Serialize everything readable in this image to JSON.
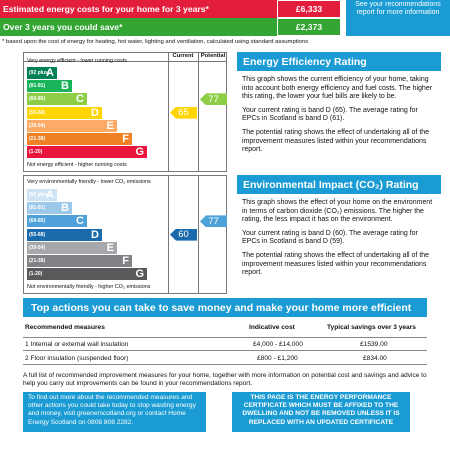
{
  "costs": {
    "row1_label": "Estimated energy costs for your home for 3 years*",
    "row1_value": "£6,333",
    "row2_label": "Over 3 years you could save*",
    "row2_value": "£2,373",
    "see_box": "See your recommendations report for more information",
    "footnote": "* based upon the cost of energy for heating, hot water, lighting and ventilation, calculated using standard assumptions"
  },
  "efficiency_chart": {
    "col_current": "Current",
    "col_potential": "Potential",
    "top_caption": "Very energy efficient - lower running costs",
    "bottom_caption": "Not energy efficient - higher running costs",
    "bands": [
      {
        "range": "(92 plus)",
        "letter": "A",
        "color": "#008054"
      },
      {
        "range": "(81-91)",
        "letter": "B",
        "color": "#19b459"
      },
      {
        "range": "(69-80)",
        "letter": "C",
        "color": "#8dce46"
      },
      {
        "range": "(55-68)",
        "letter": "D",
        "color": "#ffd500"
      },
      {
        "range": "(39-54)",
        "letter": "E",
        "color": "#fcaa65"
      },
      {
        "range": "(21-38)",
        "letter": "F",
        "color": "#ef8023"
      },
      {
        "range": "(1-20)",
        "letter": "G",
        "color": "#e9153b"
      }
    ],
    "current": 65,
    "current_color": "#ffd500",
    "potential": 77,
    "potential_color": "#8dce46"
  },
  "impact_chart": {
    "top_caption": "Very environmentally friendly - lower CO₂ emissions",
    "bottom_caption": "Not environmentally friendly - higher CO₂ emissions",
    "bands": [
      {
        "range": "(92 plus)",
        "letter": "A",
        "color": "#cfe3f5"
      },
      {
        "range": "(81-91)",
        "letter": "B",
        "color": "#9dc8ea"
      },
      {
        "range": "(69-80)",
        "letter": "C",
        "color": "#4fa1d9"
      },
      {
        "range": "(55-68)",
        "letter": "D",
        "color": "#1a6aac"
      },
      {
        "range": "(39-54)",
        "letter": "E",
        "color": "#a6a8ab"
      },
      {
        "range": "(21-38)",
        "letter": "F",
        "color": "#808285"
      },
      {
        "range": "(1-20)",
        "letter": "G",
        "color": "#58595b"
      }
    ],
    "current": 60,
    "current_color": "#1a6aac",
    "potential": 77,
    "potential_color": "#4fa1d9"
  },
  "efficiency_panel": {
    "title": "Energy Efficiency Rating",
    "p1": "This graph shows the current efficiency of your home, taking into account both energy efficiency and fuel costs. The higher this rating, the lower your fuel bills are likely to be.",
    "p2": "Your current rating is band D (65). The average rating for EPCs in Scotland is band D (61).",
    "p3": "The potential rating shows the effect of undertaking all of the improvement measures listed within your recommendations report."
  },
  "impact_panel": {
    "title": "Environmental Impact (CO₂) Rating",
    "p1": "This graph shows the effect of your home on the environment in terms of carbon dioxide (CO₂) emissions. The higher the rating, the less impact it has on the environment.",
    "p2": "Your current rating is band D (60). The average rating for EPCs in Scotland is band D (59).",
    "p3": "The potential rating shows the effect of undertaking all of the improvement measures listed within your recommendations report."
  },
  "actions": {
    "title": "Top actions you can take to save money and make your home more efficient",
    "headers": [
      "Recommended measures",
      "Indicative cost",
      "Typical savings over 3 years"
    ],
    "rows": [
      [
        "1 Internal or external wall insulation",
        "£4,000 - £14,000",
        "£1539.00"
      ],
      [
        "2 Floor insulation (suspended floor)",
        "£800 - £1,200",
        "£834.00"
      ]
    ],
    "fine_print": "A full list of recommended improvement measures for your home, together with more information on potential cost and savings and advice to help you carry out improvements can be found in your recommendations report."
  },
  "footer": {
    "left": "To find out more about the recommended measures and other actions you could take today to stop wasting energy and money, visit greenerscotland.org or contact Home Energy Scotland on 0808 808 2282.",
    "right": "THIS PAGE IS THE ENERGY PERFORMANCE CERTIFICATE WHICH MUST BE AFFIXED TO THE DWELLING AND NOT BE REMOVED UNLESS IT IS REPLACED WITH AN UPDATED CERTIFICATE"
  },
  "colors": {
    "cost_red": "#e31d3c",
    "cost_green": "#33a532",
    "accent_blue": "#1b9bd3"
  }
}
